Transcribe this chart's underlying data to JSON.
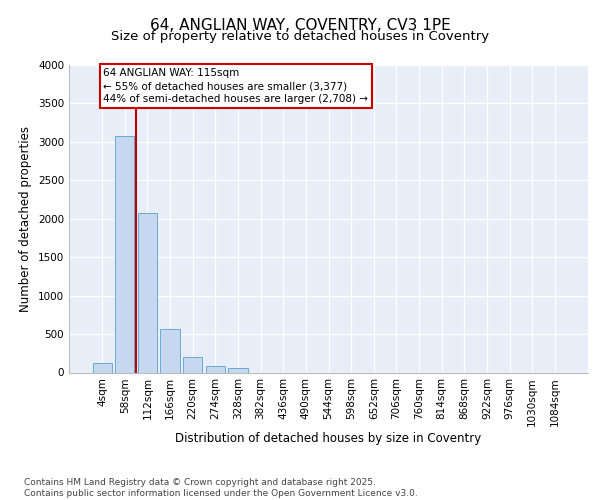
{
  "title_line1": "64, ANGLIAN WAY, COVENTRY, CV3 1PE",
  "title_line2": "Size of property relative to detached houses in Coventry",
  "xlabel": "Distribution of detached houses by size in Coventry",
  "ylabel": "Number of detached properties",
  "bar_color": "#c5d8f0",
  "bar_edge_color": "#6aaad4",
  "background_color": "#e8eef8",
  "annotation_text": "64 ANGLIAN WAY: 115sqm\n← 55% of detached houses are smaller (3,377)\n44% of semi-detached houses are larger (2,708) →",
  "vline_x": 1.5,
  "vline_color": "#bb0000",
  "annotation_box_color": "#cc0000",
  "ylim": [
    0,
    4000
  ],
  "yticks": [
    0,
    500,
    1000,
    1500,
    2000,
    2500,
    3000,
    3500,
    4000
  ],
  "bin_labels": [
    "4sqm",
    "58sqm",
    "112sqm",
    "166sqm",
    "220sqm",
    "274sqm",
    "328sqm",
    "382sqm",
    "436sqm",
    "490sqm",
    "544sqm",
    "598sqm",
    "652sqm",
    "706sqm",
    "760sqm",
    "814sqm",
    "868sqm",
    "922sqm",
    "976sqm",
    "1030sqm",
    "1084sqm"
  ],
  "bar_values": [
    130,
    3080,
    2080,
    570,
    200,
    80,
    55,
    0,
    0,
    0,
    0,
    0,
    0,
    0,
    0,
    0,
    0,
    0,
    0,
    0,
    0
  ],
  "footer_text": "Contains HM Land Registry data © Crown copyright and database right 2025.\nContains public sector information licensed under the Open Government Licence v3.0.",
  "title_fontsize": 11,
  "subtitle_fontsize": 9.5,
  "axis_label_fontsize": 8.5,
  "tick_fontsize": 7.5,
  "footer_fontsize": 6.5,
  "ann_fontsize": 7.5
}
